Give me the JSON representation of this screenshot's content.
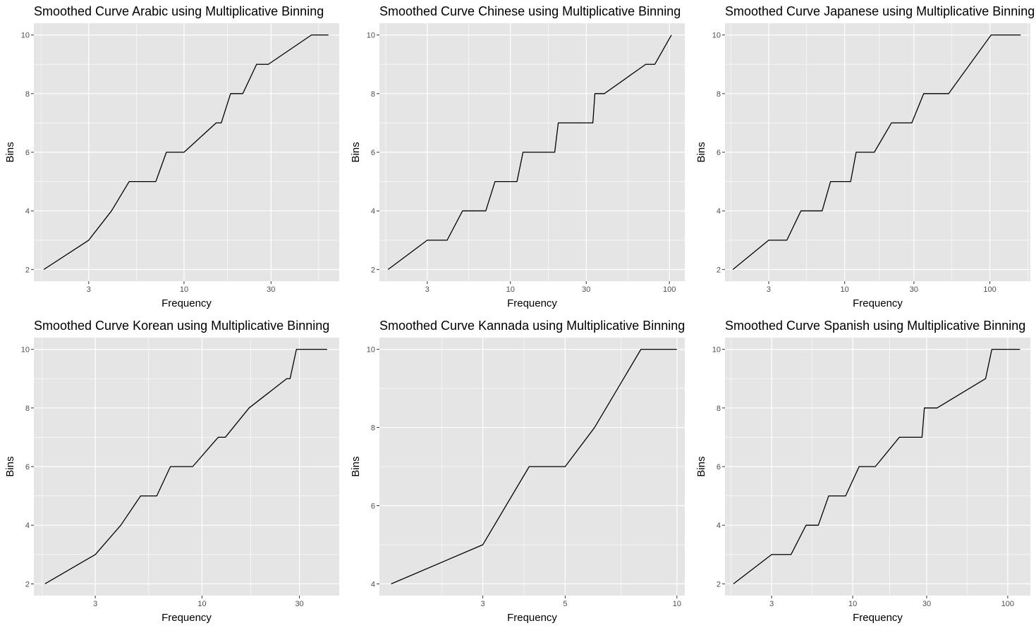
{
  "chart_data": [
    {
      "type": "line",
      "title": "Smoothed Curve Arabic using Multiplicative Binning",
      "xlabel": "Frequency",
      "ylabel": "Bins",
      "x_scale": "log10",
      "xlim": [
        1.5,
        71
      ],
      "ylim": [
        1.6,
        10.4
      ],
      "x_ticks": [
        3,
        10,
        30
      ],
      "x_tick_labels": [
        "3",
        "10",
        "30"
      ],
      "y_ticks": [
        2,
        4,
        6,
        8,
        10
      ],
      "y_tick_labels": [
        "2",
        "4",
        "6",
        "8",
        "10"
      ],
      "x": [
        1.7,
        3,
        4,
        5,
        7,
        8,
        10,
        15,
        16,
        18,
        21,
        25,
        29,
        50,
        62
      ],
      "y": [
        2,
        3,
        4,
        5,
        5,
        6,
        6,
        7,
        7,
        8,
        8,
        9,
        9,
        10,
        10
      ]
    },
    {
      "type": "line",
      "title": "Smoothed Curve Chinese using Multiplicative Binning",
      "xlabel": "Frequency",
      "ylabel": "Bins",
      "x_scale": "log10",
      "xlim": [
        1.5,
        125
      ],
      "ylim": [
        1.6,
        10.4
      ],
      "x_ticks": [
        3,
        10,
        30,
        100
      ],
      "x_tick_labels": [
        "3",
        "10",
        "30",
        "100"
      ],
      "y_ticks": [
        2,
        4,
        6,
        8,
        10
      ],
      "y_tick_labels": [
        "2",
        "4",
        "6",
        "8",
        "10"
      ],
      "x": [
        1.7,
        3,
        4,
        5,
        7,
        8,
        11,
        12,
        19,
        20,
        33,
        34,
        39,
        71,
        81,
        103
      ],
      "y": [
        2,
        3,
        3,
        4,
        4,
        5,
        5,
        6,
        6,
        7,
        7,
        8,
        8,
        9,
        9,
        10
      ]
    },
    {
      "type": "line",
      "title": "Smoothed Curve Japanese using Multiplicative Binning",
      "xlabel": "Frequency",
      "ylabel": "Bins",
      "x_scale": "log10",
      "xlim": [
        1.5,
        190
      ],
      "ylim": [
        1.6,
        10.4
      ],
      "x_ticks": [
        3,
        10,
        30,
        100
      ],
      "x_tick_labels": [
        "3",
        "10",
        "30",
        "100"
      ],
      "y_ticks": [
        2,
        4,
        6,
        8,
        10
      ],
      "y_tick_labels": [
        "2",
        "4",
        "6",
        "8",
        "10"
      ],
      "x": [
        1.7,
        3,
        4,
        5,
        7,
        8,
        11,
        12,
        16,
        21,
        29,
        35,
        52,
        102,
        163
      ],
      "y": [
        2,
        3,
        3,
        4,
        4,
        5,
        5,
        6,
        6,
        7,
        7,
        8,
        8,
        10,
        10
      ]
    },
    {
      "type": "line",
      "title": "Smoothed Curve Korean using Multiplicative Binning",
      "xlabel": "Frequency",
      "ylabel": "Bins",
      "x_scale": "log10",
      "xlim": [
        1.5,
        47
      ],
      "ylim": [
        1.6,
        10.4
      ],
      "x_ticks": [
        3,
        10,
        30
      ],
      "x_tick_labels": [
        "3",
        "10",
        "30"
      ],
      "y_ticks": [
        2,
        4,
        6,
        8,
        10
      ],
      "y_tick_labels": [
        "2",
        "4",
        "6",
        "8",
        "10"
      ],
      "x": [
        1.7,
        3,
        4,
        5,
        6,
        7,
        9,
        12,
        13,
        17,
        26,
        27,
        29,
        41
      ],
      "y": [
        2,
        3,
        4,
        5,
        5,
        6,
        6,
        7,
        7,
        8,
        9,
        9,
        10,
        10
      ]
    },
    {
      "type": "line",
      "title": "Smoothed Curve Kannada using Multiplicative Binning",
      "xlabel": "Frequency",
      "ylabel": "Bins",
      "x_scale": "log10",
      "xlim": [
        1.58,
        10.5
      ],
      "ylim": [
        3.7,
        10.3
      ],
      "x_ticks": [
        3,
        5,
        10
      ],
      "x_tick_labels": [
        "3",
        "5",
        "10"
      ],
      "y_ticks": [
        4,
        6,
        8,
        10
      ],
      "y_tick_labels": [
        "4",
        "6",
        "8",
        "10"
      ],
      "x": [
        1.7,
        3,
        4,
        5,
        6,
        8,
        10
      ],
      "y": [
        4,
        5,
        7,
        7,
        8,
        10,
        10
      ]
    },
    {
      "type": "line",
      "title": "Smoothed Curve Spanish using Multiplicative Binning",
      "xlabel": "Frequency",
      "ylabel": "Bins",
      "x_scale": "log10",
      "xlim": [
        1.5,
        140
      ],
      "ylim": [
        1.6,
        10.4
      ],
      "x_ticks": [
        3,
        10,
        30,
        100
      ],
      "x_tick_labels": [
        "3",
        "10",
        "30",
        "100"
      ],
      "y_ticks": [
        2,
        4,
        6,
        8,
        10
      ],
      "y_tick_labels": [
        "2",
        "4",
        "6",
        "8",
        "10"
      ],
      "x": [
        1.7,
        3,
        4,
        5,
        6,
        7,
        9,
        11,
        14,
        20,
        28,
        29,
        35,
        72,
        79,
        120
      ],
      "y": [
        2,
        3,
        3,
        4,
        4,
        5,
        5,
        6,
        6,
        7,
        7,
        8,
        8,
        9,
        10,
        10
      ]
    }
  ],
  "colors": {
    "panel_bg": "#e5e5e5",
    "grid": "#ffffff",
    "line": "#000000",
    "tick_text": "#4d4d4d"
  }
}
